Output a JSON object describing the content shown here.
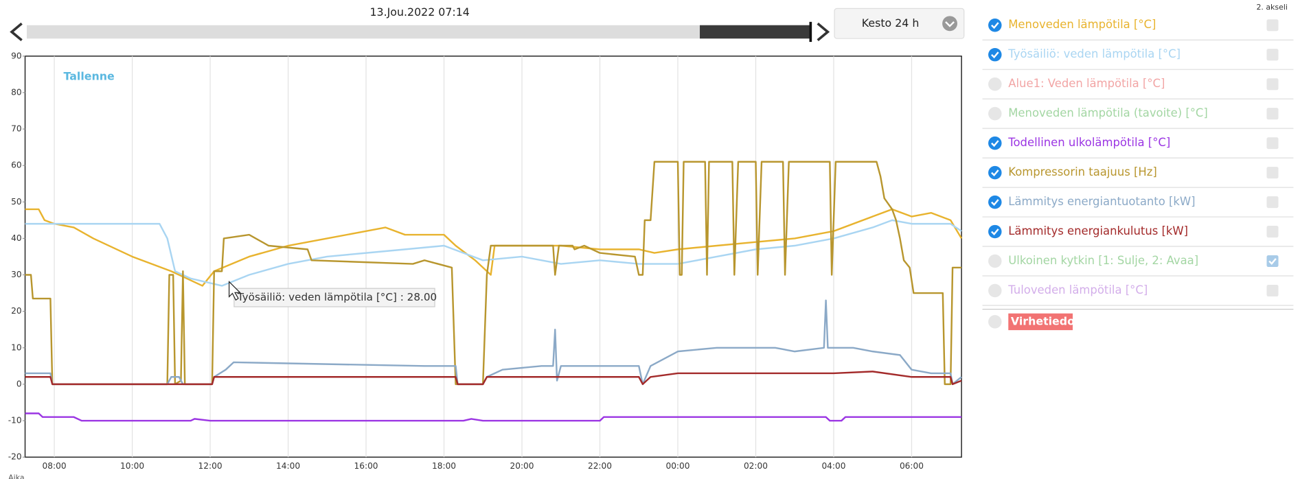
{
  "header": {
    "date": "13.Jou.2022 07:14",
    "duration": "Kesto 24 h",
    "second_axis_label": "2. akseli"
  },
  "chart_data": {
    "type": "line",
    "annotation": "Tallenne",
    "x_label": "Aika",
    "tooltip": "Työsäiliö: veden lämpötila [°C] : 28.00",
    "xlim": [
      7.25,
      31.28
    ],
    "ylim": [
      -20,
      90
    ],
    "yticks": [
      -20,
      -10,
      0,
      10,
      20,
      30,
      40,
      50,
      60,
      70,
      80,
      90
    ],
    "xticks": [
      {
        "value": 8,
        "label": "08:00"
      },
      {
        "value": 10,
        "label": "10:00"
      },
      {
        "value": 12,
        "label": "12:00"
      },
      {
        "value": 14,
        "label": "14:00"
      },
      {
        "value": 16,
        "label": "16:00"
      },
      {
        "value": 18,
        "label": "18:00"
      },
      {
        "value": 20,
        "label": "20:00"
      },
      {
        "value": 22,
        "label": "22:00"
      },
      {
        "value": 24,
        "label": "00:00"
      },
      {
        "value": 26,
        "label": "02:00"
      },
      {
        "value": 28,
        "label": "04:00"
      },
      {
        "value": 30,
        "label": "06:00"
      }
    ],
    "x_grid": true,
    "series": [
      {
        "name": "Menoveden lämpötila [°C]",
        "color": "#e8b32e",
        "visible": true,
        "second_axis": false,
        "x": [
          7.25,
          7.6,
          7.75,
          8.0,
          8.5,
          9.0,
          10.0,
          11.0,
          11.8,
          12.1,
          13.0,
          14.0,
          15.0,
          16.0,
          16.5,
          17.0,
          18.0,
          18.3,
          18.8,
          19.2,
          19.3,
          20.0,
          21.0,
          22.0,
          23.0,
          23.4,
          24.0,
          25.0,
          26.0,
          27.0,
          28.0,
          29.0,
          29.5,
          30.0,
          30.5,
          31.0,
          31.28
        ],
        "values": [
          48,
          48,
          45,
          44,
          43,
          40,
          35,
          31,
          27,
          31,
          35,
          38,
          40,
          42,
          43,
          41,
          41,
          38,
          34,
          30,
          38,
          38,
          38,
          37,
          37,
          36,
          37,
          38,
          39,
          40,
          42,
          46,
          48,
          46,
          47,
          45,
          40
        ]
      },
      {
        "name": "Työsäiliö: veden lämpötila [°C]",
        "color": "#a9d5f2",
        "visible": true,
        "second_axis": false,
        "x": [
          7.25,
          10.7,
          10.9,
          11.1,
          11.5,
          12.3,
          13.0,
          14.0,
          15.0,
          16.0,
          17.0,
          18.0,
          18.5,
          19.0,
          20.0,
          21.0,
          22.0,
          23.0,
          24.0,
          25.0,
          26.0,
          27.0,
          28.0,
          29.0,
          29.5,
          30.0,
          31.0,
          31.28
        ],
        "values": [
          44,
          44,
          40,
          31,
          29,
          27,
          30,
          33,
          35,
          36,
          37,
          38,
          36,
          34,
          35,
          33,
          34,
          33,
          33,
          35,
          37,
          38,
          40,
          43,
          45,
          44,
          44,
          42
        ]
      },
      {
        "name": "Alue1: Veden lämpötila [°C]",
        "color": "#f2a5a5",
        "visible": false,
        "second_axis": false
      },
      {
        "name": "Menoveden lämpötila (tavoite) [°C]",
        "color": "#a3d6a3",
        "visible": false,
        "second_axis": false
      },
      {
        "name": "Todellinen ulkolämpötila [°C]",
        "color": "#9b35e3",
        "visible": true,
        "second_axis": false,
        "x": [
          7.25,
          7.6,
          7.7,
          8.5,
          8.7,
          11.5,
          11.6,
          12.0,
          16.0,
          18.5,
          18.7,
          19.0,
          22.0,
          22.1,
          27.8,
          27.9,
          28.2,
          28.3,
          31.28
        ],
        "values": [
          -8,
          -8,
          -9,
          -9,
          -10,
          -10,
          -9.5,
          -10,
          -10,
          -10,
          -9.5,
          -10,
          -10,
          -9,
          -9,
          -10,
          -10,
          -9,
          -9
        ]
      },
      {
        "name": "Kompressorin taajuus [Hz]",
        "color": "#b8962e",
        "visible": true,
        "second_axis": false,
        "x": [
          7.25,
          7.4,
          7.45,
          7.9,
          7.95,
          10.9,
          10.95,
          11.05,
          11.1,
          11.25,
          11.3,
          11.35,
          12.05,
          12.1,
          12.3,
          12.35,
          13.0,
          13.5,
          14.5,
          14.6,
          17.2,
          17.5,
          18.2,
          18.3,
          19.0,
          19.1,
          19.2,
          20.8,
          20.85,
          20.95,
          21.3,
          21.35,
          21.6,
          22.0,
          22.9,
          23.0,
          23.1,
          23.15,
          23.3,
          23.4,
          24.0,
          24.05,
          24.1,
          24.15,
          24.7,
          24.75,
          24.8,
          25.4,
          25.45,
          25.55,
          26.0,
          26.05,
          26.15,
          26.7,
          26.75,
          26.85,
          27.9,
          27.95,
          28.05,
          29.1,
          29.2,
          29.3,
          29.5,
          29.6,
          29.7,
          29.8,
          29.95,
          30.05,
          30.8,
          30.85,
          31.0,
          31.05,
          31.28
        ],
        "values": [
          30,
          30,
          23.5,
          23.5,
          0,
          0,
          30,
          30,
          0,
          1,
          31,
          0,
          0,
          31,
          31,
          40,
          41,
          38,
          37,
          34,
          33,
          34,
          32,
          0,
          0,
          30,
          38,
          38,
          30,
          38,
          38,
          37,
          38,
          36,
          35,
          30,
          30,
          45,
          45,
          61,
          61,
          30,
          30,
          61,
          61,
          30,
          61,
          61,
          30,
          61,
          61,
          30,
          61,
          61,
          30,
          61,
          61,
          30,
          61,
          61,
          57,
          51,
          48,
          45,
          40,
          34,
          32,
          25,
          25,
          0,
          0,
          32,
          32
        ]
      },
      {
        "name": "Lämmitys energiantuotanto [kW]",
        "color": "#8ba9c7",
        "visible": true,
        "second_axis": false,
        "x": [
          7.25,
          7.9,
          7.95,
          10.9,
          11.0,
          11.2,
          11.3,
          12.05,
          12.1,
          12.4,
          12.6,
          17.5,
          18.3,
          18.35,
          19.0,
          19.1,
          19.5,
          20.5,
          20.8,
          20.85,
          20.9,
          21.0,
          22.0,
          23.0,
          23.1,
          23.3,
          24.0,
          25.0,
          26.0,
          26.5,
          27.0,
          27.75,
          27.8,
          27.85,
          28.5,
          29.0,
          29.7,
          30.0,
          30.5,
          31.0,
          31.05,
          31.28
        ],
        "values": [
          3,
          3,
          0,
          0,
          2,
          2,
          0,
          0,
          2,
          4,
          6,
          5,
          5,
          0,
          0,
          2,
          4,
          5,
          5,
          15,
          1,
          5,
          5,
          5,
          0,
          5,
          9,
          10,
          10,
          10,
          9,
          10,
          23,
          10,
          10,
          9,
          8,
          4,
          3,
          3,
          0,
          2
        ]
      },
      {
        "name": "Lämmitys energiankulutus [kW]",
        "color": "#a32a2a",
        "visible": true,
        "second_axis": false,
        "x": [
          7.25,
          7.9,
          7.95,
          12.05,
          12.1,
          18.3,
          18.35,
          19.0,
          19.1,
          23.0,
          23.1,
          23.3,
          24.0,
          28.0,
          29.0,
          30.0,
          30.5,
          31.0,
          31.05,
          31.28
        ],
        "values": [
          2,
          2,
          0,
          0,
          2,
          2,
          0,
          0,
          2,
          2,
          0,
          2,
          3,
          3,
          3.5,
          2,
          2,
          2,
          0,
          1
        ]
      },
      {
        "name": "Ulkoinen kytkin [1: Sulje, 2: Avaa]",
        "color": "#a3d6a3",
        "visible": false,
        "second_axis": true
      },
      {
        "name": "Tuloveden lämpötila [°C]",
        "color": "#d3aeea",
        "visible": false,
        "second_axis": false
      }
    ],
    "error_legend": {
      "name": "Virhetiedot",
      "color": "#f27373"
    }
  }
}
